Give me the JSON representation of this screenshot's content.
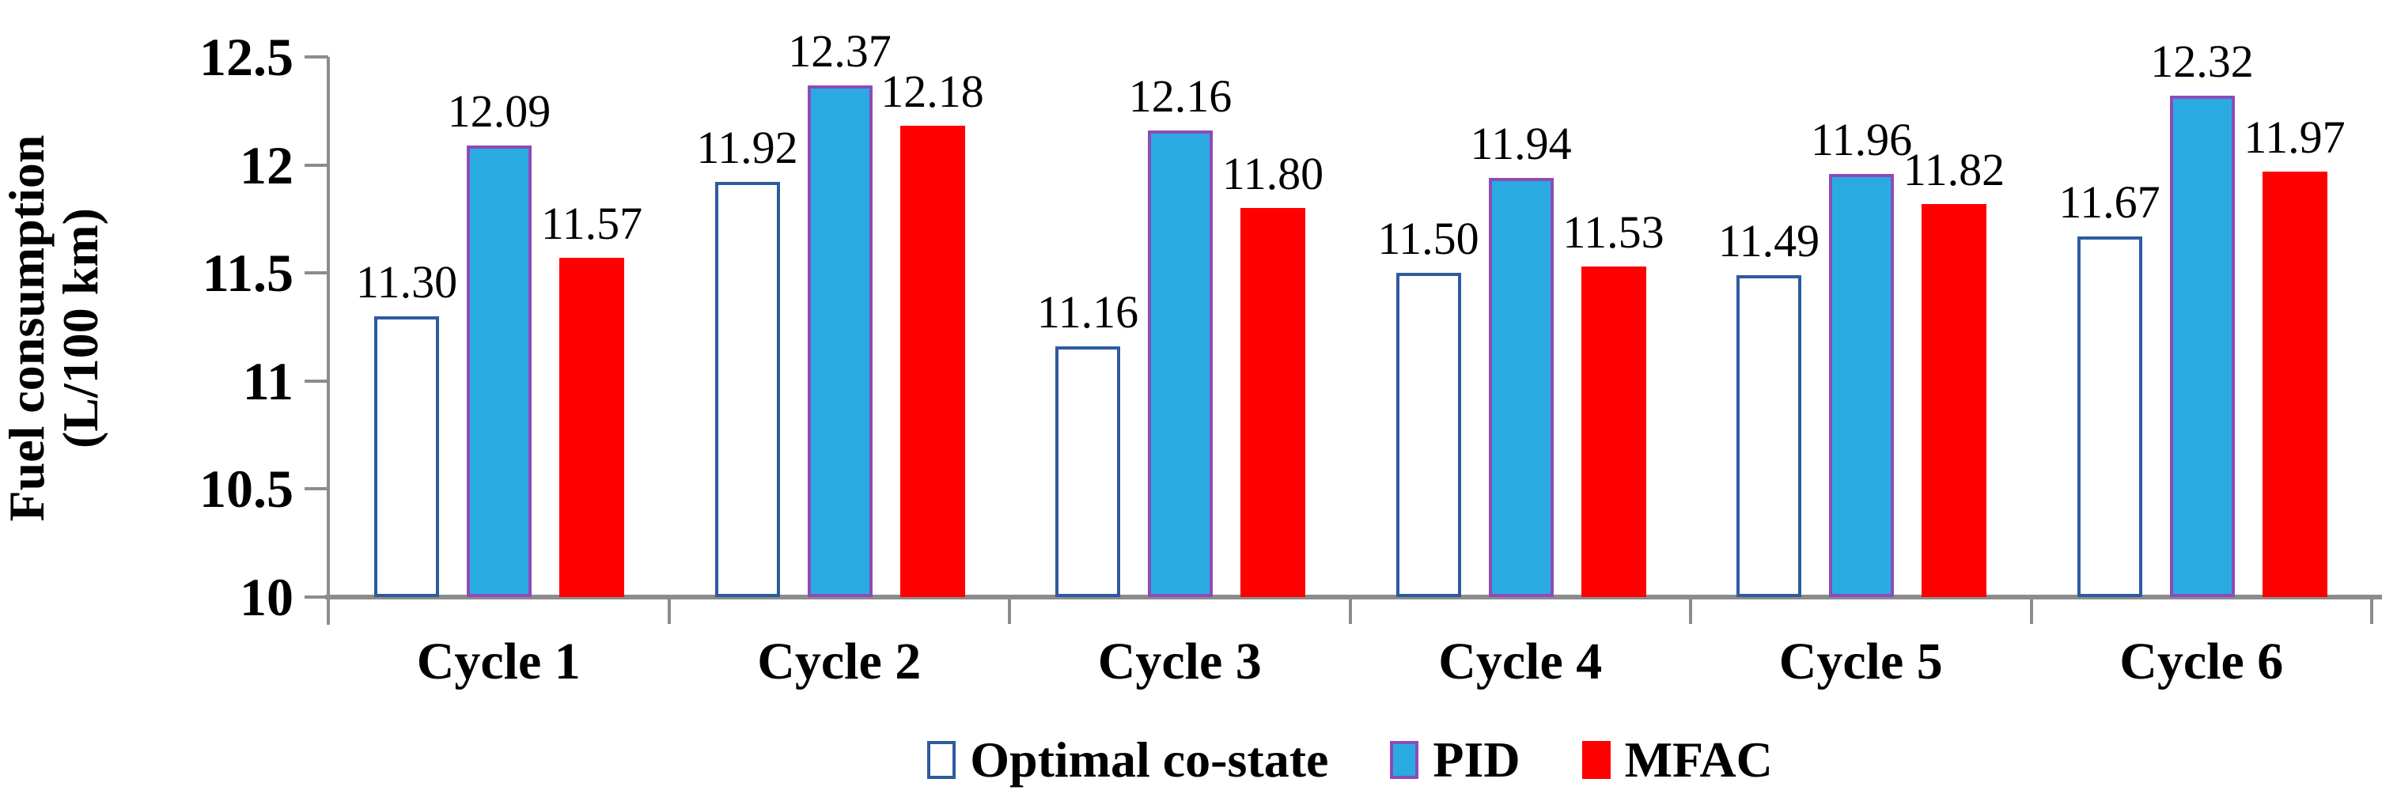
{
  "figure": {
    "background": "#FFFFFF",
    "text_color": "#000000",
    "axis_color": "#8C8C8C"
  },
  "chart_data": {
    "type": "bar",
    "title": "",
    "xlabel": "",
    "ylabel": "Fuel consumption (L/100 km)",
    "ylabel_lines": [
      "Fuel consumption",
      "(L/100 km)"
    ],
    "categories": [
      "Cycle 1",
      "Cycle 2",
      "Cycle 3",
      "Cycle 4",
      "Cycle 5",
      "Cycle 6"
    ],
    "series": [
      {
        "name": "Optimal co-state",
        "fill": "#FFFFFF",
        "border": "#2E5B9F",
        "values": [
          11.3,
          11.92,
          11.16,
          11.5,
          11.49,
          11.67
        ],
        "labels": [
          "11.30",
          "11.92",
          "11.16",
          "11.50",
          "11.49",
          "11.67"
        ]
      },
      {
        "name": "PID",
        "fill": "#29ABE2",
        "border": "#8E4BB8",
        "values": [
          12.09,
          12.37,
          12.16,
          11.94,
          11.96,
          12.32
        ],
        "labels": [
          "12.09",
          "12.37",
          "12.16",
          "11.94",
          "11.96",
          "12.32"
        ]
      },
      {
        "name": "MFAC",
        "fill": "#FE0000",
        "border": "#FE0000",
        "values": [
          11.57,
          12.18,
          11.8,
          11.53,
          11.82,
          11.97
        ],
        "labels": [
          "11.57",
          "12.18",
          "11.80",
          "11.53",
          "11.82",
          "11.97"
        ]
      }
    ],
    "ylim": [
      10,
      12.5
    ],
    "yticks": [
      10,
      10.5,
      11,
      11.5,
      12,
      12.5
    ],
    "ytick_labels": [
      "10",
      "10.5",
      "11",
      "11.5",
      "12",
      "12.5"
    ],
    "value_label_decimals": 2,
    "grid": false,
    "legend_position": "bottom"
  }
}
